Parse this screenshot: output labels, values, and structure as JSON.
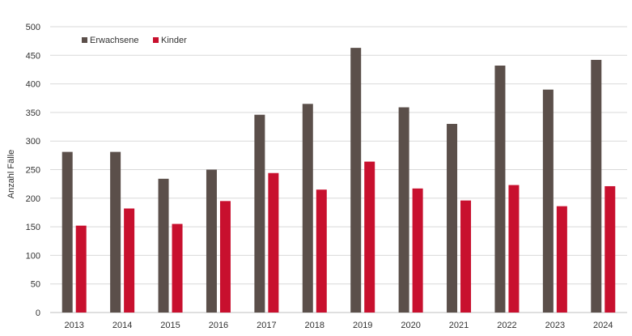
{
  "chart_data": {
    "type": "bar",
    "categories": [
      "2013",
      "2014",
      "2015",
      "2016",
      "2017",
      "2018",
      "2019",
      "2020",
      "2021",
      "2022",
      "2023",
      "2024"
    ],
    "series": [
      {
        "name": "Erwachsene",
        "color": "#5b4f4a",
        "values": [
          281,
          281,
          234,
          250,
          346,
          365,
          463,
          359,
          330,
          432,
          390,
          442
        ]
      },
      {
        "name": "Kinder",
        "color": "#c8102e",
        "values": [
          152,
          182,
          155,
          195,
          244,
          215,
          264,
          217,
          196,
          223,
          186,
          221
        ]
      }
    ],
    "xlabel": "",
    "ylabel": "Anzahl Fälle",
    "ylim": [
      0,
      500
    ],
    "yticks": [
      0,
      50,
      100,
      150,
      200,
      250,
      300,
      350,
      400,
      450,
      500
    ],
    "grid": true,
    "legend_position": "top-left"
  }
}
